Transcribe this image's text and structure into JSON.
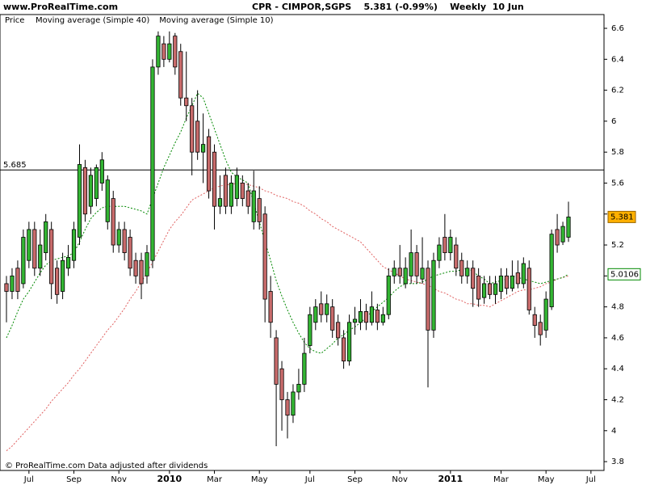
{
  "chart_data": {
    "type": "candlestick",
    "source": "www.ProRealTime.com",
    "title": "CPR - CIMPOR,SGPS    5.381 (-0.99%)    Weekly  10 Jun",
    "price_name": "Price",
    "footer": "© ProRealTime.com  Data adjusted after dividends",
    "up_color": "#33b533",
    "down_color": "#c86b6b",
    "categories": [
      null,
      null,
      null,
      null,
      "Jul",
      null,
      null,
      null,
      null,
      null,
      null,
      null,
      "Sep",
      null,
      null,
      null,
      null,
      null,
      null,
      null,
      "Nov",
      null,
      null,
      null,
      null,
      null,
      null,
      null,
      null,
      "2010",
      null,
      null,
      null,
      null,
      null,
      null,
      null,
      "Mar",
      null,
      null,
      null,
      null,
      null,
      null,
      null,
      "May",
      null,
      null,
      null,
      null,
      null,
      null,
      null,
      null,
      "Jul",
      null,
      null,
      null,
      null,
      null,
      null,
      null,
      "Sep",
      null,
      null,
      null,
      null,
      null,
      null,
      null,
      "Nov",
      null,
      null,
      null,
      null,
      null,
      null,
      null,
      null,
      "2011",
      null,
      null,
      null,
      null,
      null,
      null,
      null,
      null,
      "Mar",
      null,
      null,
      null,
      null,
      null,
      null,
      null,
      "May",
      null,
      null,
      null,
      null,
      null,
      null,
      null,
      "Jul"
    ],
    "open": [
      4.95,
      4.9,
      5.05,
      4.95,
      5.1,
      5.3,
      5.05,
      5.15,
      5.3,
      5.05,
      4.9,
      5.05,
      5.1,
      5.25,
      5.7,
      5.45,
      5.5,
      5.6,
      5.35,
      5.5,
      5.2,
      5.3,
      5.25,
      5.1,
      5.1,
      5.0,
      5.1,
      6.35,
      6.5,
      6.4,
      6.55,
      6.45,
      6.15,
      6.1,
      6.0,
      5.8,
      5.9,
      5.8,
      5.45,
      5.65,
      5.45,
      5.5,
      5.6,
      5.55,
      5.35,
      5.5,
      5.4,
      4.9,
      4.6,
      4.4,
      4.2,
      4.1,
      4.25,
      4.3,
      4.55,
      4.7,
      4.82,
      4.75,
      4.8,
      4.7,
      4.6,
      4.45,
      4.7,
      4.7,
      4.77,
      4.7,
      4.78,
      4.7,
      4.75,
      5.0,
      5.05,
      4.95,
      5.0,
      5.15,
      4.98,
      5.05,
      4.65,
      5.1,
      5.25,
      5.15,
      5.2,
      5.1,
      5.0,
      5.05,
      5.0,
      4.86,
      4.95,
      4.88,
      4.9,
      5.0,
      4.92,
      5.02,
      4.95,
      5.05,
      4.75,
      4.7,
      4.65,
      4.8,
      5.3,
      5.22,
      5.25,
      null,
      null,
      null,
      null
    ],
    "high": [
      5.0,
      5.05,
      5.1,
      5.3,
      5.35,
      5.35,
      5.3,
      5.4,
      5.35,
      5.1,
      5.15,
      5.2,
      5.35,
      5.85,
      5.75,
      5.7,
      5.72,
      5.8,
      5.65,
      5.55,
      5.35,
      5.35,
      5.3,
      5.15,
      5.15,
      5.2,
      6.4,
      6.58,
      6.55,
      6.58,
      6.57,
      6.5,
      6.45,
      6.15,
      6.2,
      6.05,
      5.95,
      5.85,
      5.65,
      5.7,
      5.65,
      5.7,
      5.65,
      5.6,
      5.68,
      5.58,
      5.45,
      5.0,
      4.65,
      4.45,
      4.25,
      4.3,
      4.4,
      4.6,
      4.8,
      4.85,
      4.9,
      4.88,
      4.85,
      4.75,
      4.65,
      4.75,
      4.8,
      4.85,
      4.82,
      4.9,
      4.82,
      4.8,
      5.05,
      5.1,
      5.2,
      5.12,
      5.3,
      5.2,
      5.25,
      5.1,
      5.15,
      5.25,
      5.4,
      5.3,
      5.25,
      5.15,
      5.1,
      5.1,
      5.05,
      5.0,
      5.0,
      5.0,
      5.05,
      5.05,
      5.1,
      5.1,
      5.12,
      5.1,
      4.8,
      4.75,
      4.9,
      5.3,
      5.4,
      5.35,
      5.48,
      null,
      null,
      null,
      null
    ],
    "low": [
      4.7,
      4.85,
      4.85,
      4.92,
      5.05,
      5.0,
      5.0,
      5.1,
      4.85,
      4.82,
      4.85,
      5.0,
      5.05,
      5.2,
      5.35,
      5.4,
      5.45,
      5.55,
      5.3,
      5.15,
      5.15,
      5.1,
      5.0,
      4.95,
      4.85,
      4.95,
      5.05,
      6.3,
      6.35,
      6.38,
      6.3,
      6.1,
      6.0,
      5.65,
      5.75,
      5.6,
      5.5,
      5.3,
      5.4,
      5.4,
      5.4,
      5.45,
      5.45,
      5.4,
      5.3,
      5.3,
      4.7,
      4.6,
      3.9,
      4.0,
      3.95,
      4.05,
      4.2,
      4.25,
      4.5,
      4.65,
      4.7,
      4.7,
      4.6,
      4.55,
      4.4,
      4.42,
      4.62,
      4.65,
      4.65,
      4.68,
      4.65,
      4.68,
      4.72,
      4.95,
      4.95,
      4.92,
      4.95,
      4.95,
      4.95,
      4.28,
      4.6,
      5.05,
      5.1,
      5.1,
      5.0,
      4.95,
      4.95,
      4.8,
      4.8,
      4.82,
      4.85,
      4.82,
      4.85,
      4.88,
      4.9,
      4.92,
      4.92,
      4.75,
      4.6,
      4.55,
      4.6,
      4.78,
      5.15,
      5.2,
      5.22,
      null,
      null,
      null,
      null
    ],
    "close": [
      4.9,
      5.0,
      4.9,
      5.25,
      5.3,
      5.05,
      5.2,
      5.35,
      4.95,
      4.88,
      5.1,
      5.12,
      5.3,
      5.72,
      5.4,
      5.65,
      5.7,
      5.75,
      5.62,
      5.2,
      5.3,
      5.15,
      5.05,
      5.0,
      4.95,
      5.15,
      6.35,
      6.55,
      6.4,
      6.5,
      6.35,
      6.15,
      6.1,
      5.8,
      5.8,
      5.85,
      5.55,
      5.45,
      5.5,
      5.45,
      5.6,
      5.65,
      5.5,
      5.45,
      5.55,
      5.35,
      4.85,
      4.7,
      4.3,
      4.2,
      4.1,
      4.25,
      4.3,
      4.5,
      4.75,
      4.8,
      4.75,
      4.82,
      4.65,
      4.6,
      4.45,
      4.7,
      4.72,
      4.77,
      4.7,
      4.8,
      4.7,
      4.75,
      5.0,
      5.05,
      5.0,
      5.05,
      5.15,
      5.0,
      5.05,
      4.65,
      5.1,
      5.2,
      5.15,
      5.25,
      5.05,
      5.0,
      5.05,
      4.92,
      4.85,
      4.95,
      4.88,
      4.95,
      5.0,
      4.92,
      5.0,
      4.95,
      5.08,
      4.78,
      4.68,
      4.62,
      4.85,
      5.27,
      5.2,
      5.32,
      5.381,
      null,
      null,
      null,
      null
    ],
    "series": [
      {
        "name": "Moving average (Simple 40)",
        "color": "#e06060",
        "values": [
          3.87,
          3.9,
          3.94,
          3.98,
          4.02,
          4.06,
          4.1,
          4.14,
          4.19,
          4.23,
          4.27,
          4.31,
          4.36,
          4.4,
          4.45,
          4.5,
          4.55,
          4.6,
          4.65,
          4.69,
          4.74,
          4.79,
          4.85,
          4.9,
          4.96,
          5.02,
          5.09,
          5.16,
          5.23,
          5.3,
          5.35,
          5.39,
          5.44,
          5.49,
          5.51,
          5.53,
          5.55,
          5.57,
          5.58,
          5.59,
          5.59,
          5.6,
          5.6,
          5.59,
          5.58,
          5.57,
          5.55,
          5.54,
          5.52,
          5.51,
          5.5,
          5.48,
          5.47,
          5.45,
          5.42,
          5.4,
          5.37,
          5.35,
          5.32,
          5.3,
          5.28,
          5.26,
          5.24,
          5.22,
          5.18,
          5.14,
          5.1,
          5.06,
          5.04,
          5.02,
          5.0,
          4.98,
          4.97,
          4.96,
          4.95,
          4.94,
          4.92,
          4.9,
          4.89,
          4.87,
          4.85,
          4.84,
          4.82,
          4.82,
          4.81,
          4.81,
          4.8,
          4.82,
          4.84,
          4.86,
          4.88,
          4.9,
          4.91,
          4.91,
          4.92,
          4.93,
          4.95,
          4.96,
          4.98,
          4.99,
          5.0,
          null,
          null,
          null,
          null
        ]
      },
      {
        "name": "Moving average (Simple 10)",
        "color": "#008800",
        "values": [
          4.6,
          4.68,
          4.77,
          4.85,
          4.9,
          4.96,
          5.02,
          5.07,
          5.1,
          5.11,
          5.12,
          5.13,
          5.15,
          5.22,
          5.3,
          5.37,
          5.41,
          5.44,
          5.45,
          5.45,
          5.45,
          5.45,
          5.44,
          5.43,
          5.42,
          5.4,
          5.5,
          5.6,
          5.7,
          5.78,
          5.86,
          5.93,
          6.02,
          6.1,
          6.18,
          6.15,
          6.05,
          5.95,
          5.85,
          5.75,
          5.67,
          5.64,
          5.62,
          5.6,
          5.47,
          5.35,
          5.22,
          5.1,
          4.97,
          4.87,
          4.78,
          4.7,
          4.63,
          4.57,
          4.53,
          4.51,
          4.5,
          4.53,
          4.56,
          4.6,
          4.62,
          4.65,
          4.67,
          4.7,
          4.73,
          4.77,
          4.8,
          4.83,
          4.86,
          4.9,
          4.93,
          4.95,
          4.95,
          4.95,
          4.96,
          4.98,
          5.0,
          5.01,
          5.02,
          5.03,
          5.03,
          5.04,
          5.05,
          5.03,
          5.0,
          4.98,
          4.95,
          4.96,
          4.97,
          4.98,
          5.0,
          4.99,
          4.98,
          4.97,
          4.96,
          4.95,
          4.96,
          4.97,
          4.98,
          4.99,
          5.0106,
          null,
          null,
          null,
          null
        ]
      }
    ],
    "hline": 5.685,
    "ylim": [
      3.743,
      6.689
    ],
    "yticks": [
      3.8,
      4,
      4.2,
      4.4,
      4.6,
      4.8,
      5,
      5.2,
      5.4,
      5.6,
      5.8,
      6,
      6.2,
      6.4,
      6.6
    ]
  }
}
